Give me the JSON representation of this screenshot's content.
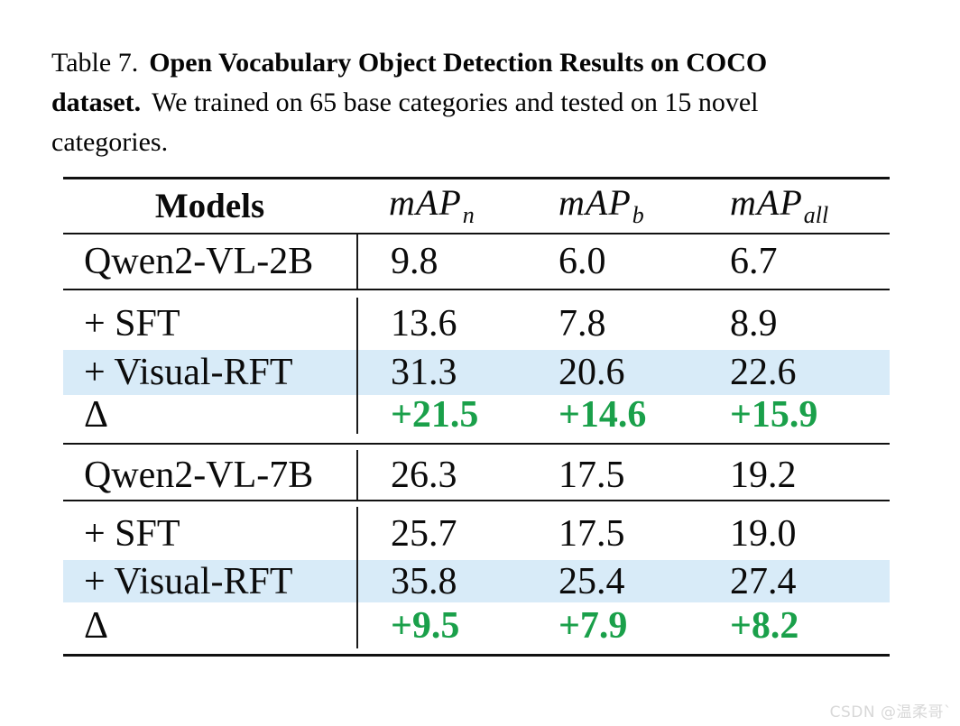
{
  "caption": {
    "line1_regular": "Table 7.",
    "line1_bold": "Open Vocabulary Object Detection Results on COCO",
    "line2_bold": "dataset.",
    "line2_regular": "We trained on 65 base categories and tested on 15 novel",
    "line3_regular": "categories."
  },
  "table": {
    "header": {
      "models": "Models",
      "map_n": {
        "base": "mAP",
        "sub": "n"
      },
      "map_b": {
        "base": "mAP",
        "sub": "b"
      },
      "map_all": {
        "base": "mAP",
        "sub": "all"
      }
    },
    "rows": [
      {
        "label": "Qwen2-VL-2B",
        "values": [
          "9.8",
          "6.0",
          "6.7"
        ]
      },
      {
        "label": "+ SFT",
        "values": [
          "13.6",
          "7.8",
          "8.9"
        ]
      },
      {
        "label": "+ Visual-RFT",
        "values": [
          "31.3",
          "20.6",
          "22.6"
        ]
      },
      {
        "label": "Δ",
        "values": [
          "+21.5",
          "+14.6",
          "+15.9"
        ]
      },
      {
        "label": "Qwen2-VL-7B",
        "values": [
          "26.3",
          "17.5",
          "19.2"
        ]
      },
      {
        "label": "+ SFT",
        "values": [
          "25.7",
          "17.5",
          "19.0"
        ]
      },
      {
        "label": "+ Visual-RFT",
        "values": [
          "35.8",
          "25.4",
          "27.4"
        ]
      },
      {
        "label": "Δ",
        "values": [
          "+9.5",
          "+7.9",
          "+8.2"
        ]
      }
    ]
  },
  "colors": {
    "highlight_row": "#d8ebf8",
    "delta_green": "#1aa04a",
    "rule_black": "#111111",
    "watermark_gray": "#d8d8d8"
  },
  "watermark": "CSDN @温柔哥`"
}
